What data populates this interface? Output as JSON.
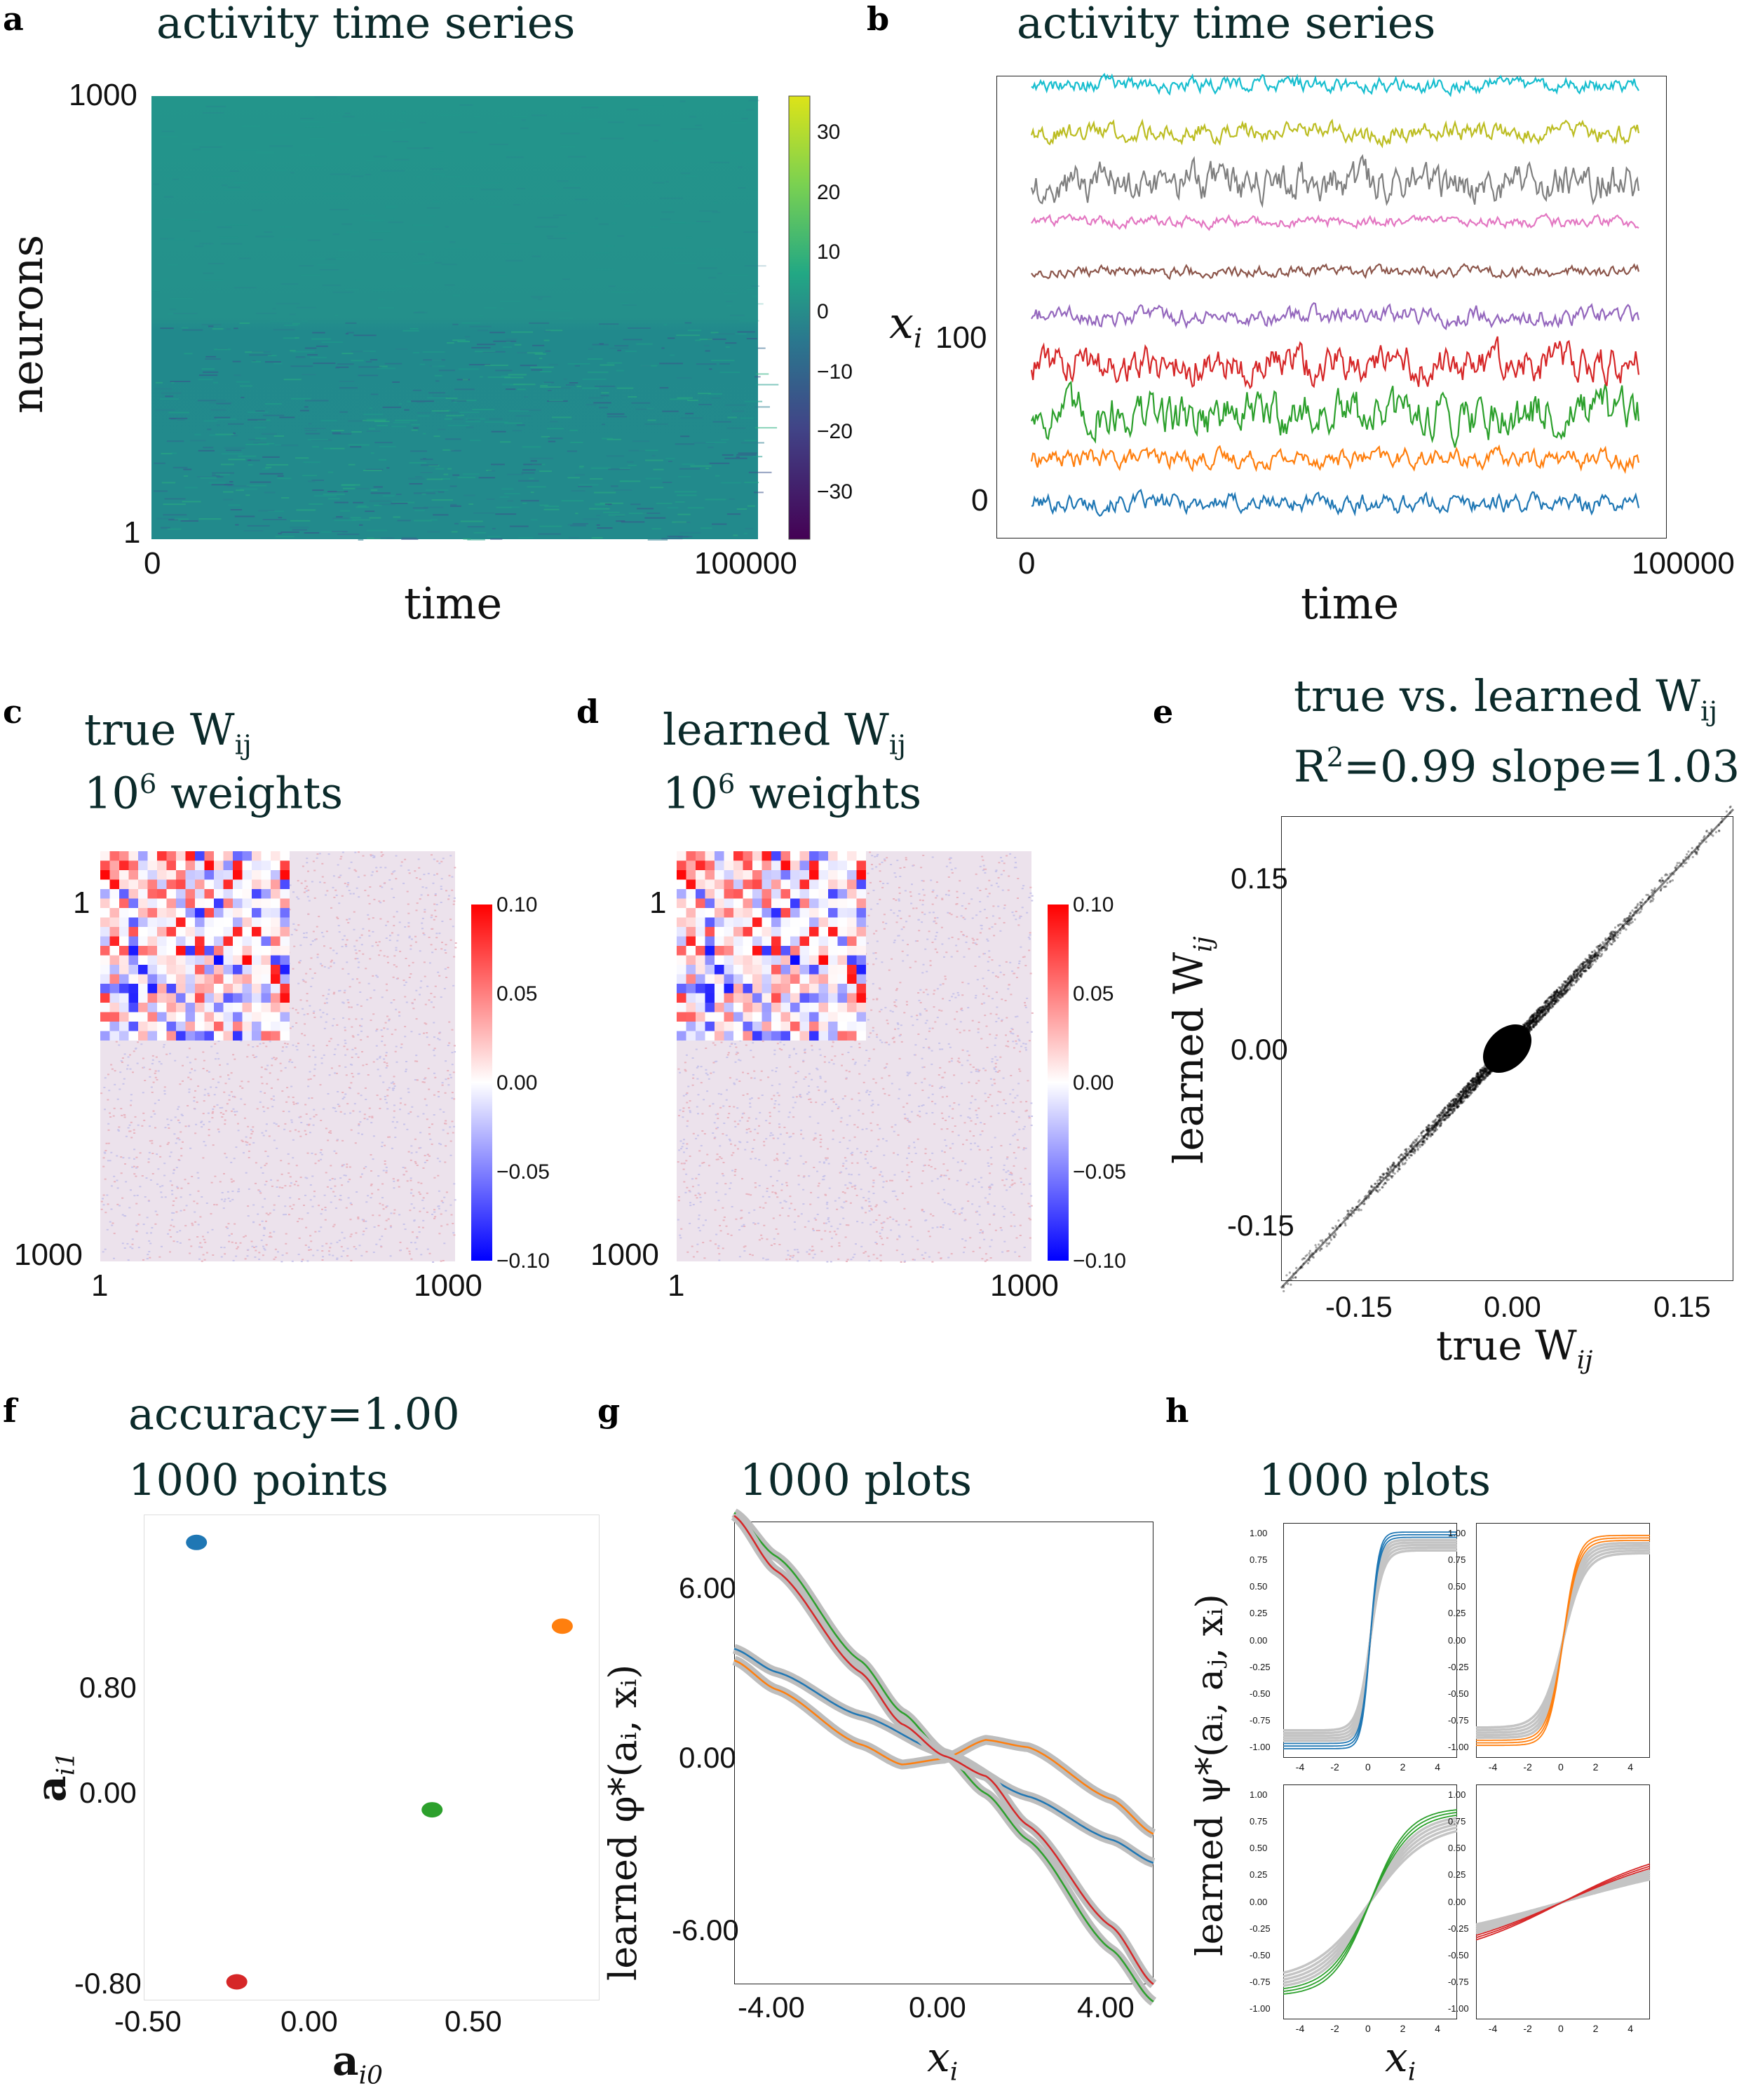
{
  "panels": {
    "a": {
      "label": "a",
      "title": "activity time series",
      "ylabel": "neurons",
      "xlabel": "time",
      "yticks": [
        "1000",
        "1"
      ],
      "xticks": [
        "0",
        "100000"
      ],
      "colorbar_ticks": [
        "30",
        "20",
        "10",
        "0",
        "−10",
        "−20",
        "−30"
      ]
    },
    "b": {
      "label": "b",
      "title": "activity time series",
      "ylabel": "x",
      "ylabel_sub": "i",
      "xlabel": "time",
      "yticks": [
        "100",
        "0"
      ],
      "xticks": [
        "0",
        "100000"
      ]
    },
    "c": {
      "label": "c",
      "title_line1": "true W",
      "title_sub": "ij",
      "title_line2_pre": "10",
      "title_line2_sup": "6",
      "title_line2_post": " weights",
      "yticks": [
        "1",
        "1000"
      ],
      "xticks": [
        "1",
        "1000"
      ],
      "colorbar_ticks": [
        "0.10",
        "0.05",
        "0.00",
        "−0.05",
        "−0.10"
      ]
    },
    "d": {
      "label": "d",
      "title_line1": "learned W",
      "title_sub": "ij",
      "title_line2_pre": "10",
      "title_line2_sup": "6",
      "title_line2_post": " weights",
      "yticks": [
        "1",
        "1000"
      ],
      "xticks": [
        "1",
        "1000"
      ],
      "colorbar_ticks": [
        "0.10",
        "0.05",
        "0.00",
        "−0.05",
        "−0.10"
      ]
    },
    "e": {
      "label": "e",
      "title_line1": "true vs. learned W",
      "title_sub": "ij",
      "title_line2_pre": "R",
      "title_line2_sup": "2",
      "title_line2_post": "=0.99  slope=1.03",
      "ylabel": "learned W",
      "ylabel_sub": "ij",
      "xlabel": "true W",
      "xlabel_sub": "ij",
      "yticks": [
        "0.15",
        "0.00",
        "-0.15"
      ],
      "xticks": [
        "-0.15",
        "0.00",
        "0.15"
      ]
    },
    "f": {
      "label": "f",
      "title_line1": "accuracy=1.00",
      "title_line2": "1000 points",
      "ylabel": "a",
      "ylabel_sub": "i1",
      "xlabel": "a",
      "xlabel_sub": "i0",
      "yticks": [
        "0.80",
        "0.00",
        "-0.80"
      ],
      "xticks": [
        "-0.50",
        "0.00",
        "0.50"
      ]
    },
    "g": {
      "label": "g",
      "title": "1000 plots",
      "ylabel": "learned φ*(aᵢ, xᵢ)",
      "xlabel": "x",
      "xlabel_sub": "i",
      "yticks": [
        "6.00",
        "0.00",
        "-6.00"
      ],
      "xticks": [
        "-4.00",
        "0.00",
        "4.00"
      ]
    },
    "h": {
      "label": "h",
      "title": "1000 plots",
      "ylabel": "learned ψ*(aᵢ, aⱼ, xᵢ)",
      "xlabel": "x",
      "xlabel_sub": "i",
      "yticks": [
        "1.00",
        "0.75",
        "0.50",
        "0.25",
        "0.00",
        "-0.25",
        "-0.50",
        "-0.75",
        "-1.00"
      ],
      "xticks": [
        "-4",
        "-2",
        "0",
        "2",
        "4"
      ]
    }
  },
  "chart_data": [
    {
      "type": "heatmap",
      "panel": "a",
      "title": "activity time series",
      "xlabel": "time",
      "ylabel": "neurons",
      "xlim": [
        0,
        100000
      ],
      "ylim": [
        1,
        1000
      ],
      "colorbar_range": [
        -38,
        36
      ],
      "colormap": "viridis"
    },
    {
      "type": "line",
      "panel": "b",
      "title": "activity time series",
      "xlabel": "time",
      "ylabel": "x_i",
      "xlim": [
        0,
        100000
      ],
      "ylim": [
        -20,
        240
      ],
      "series": [
        {
          "name": "trace-0",
          "color": "#1f77b4",
          "offset": 0,
          "amplitude": 5
        },
        {
          "name": "trace-1",
          "color": "#ff7f0e",
          "offset": 25,
          "amplitude": 5
        },
        {
          "name": "trace-2",
          "color": "#2ca02c",
          "offset": 50,
          "amplitude": 12
        },
        {
          "name": "trace-3",
          "color": "#d62728",
          "offset": 78,
          "amplitude": 10
        },
        {
          "name": "trace-4",
          "color": "#9467bd",
          "offset": 105,
          "amplitude": 5
        },
        {
          "name": "trace-5",
          "color": "#8c564b",
          "offset": 130,
          "amplitude": 3
        },
        {
          "name": "trace-6",
          "color": "#e377c2",
          "offset": 158,
          "amplitude": 3
        },
        {
          "name": "trace-7",
          "color": "#7f7f7f",
          "offset": 180,
          "amplitude": 10
        },
        {
          "name": "trace-8",
          "color": "#bcbd22",
          "offset": 208,
          "amplitude": 5
        },
        {
          "name": "trace-9",
          "color": "#17becf",
          "offset": 235,
          "amplitude": 4
        }
      ]
    },
    {
      "type": "heatmap",
      "panel": "c",
      "title": "true Wij",
      "xlim": [
        1,
        1000
      ],
      "ylim": [
        1,
        1000
      ],
      "colorbar_range": [
        -0.1,
        0.1
      ],
      "colormap": "bwr"
    },
    {
      "type": "heatmap",
      "panel": "d",
      "title": "learned Wij",
      "xlim": [
        1,
        1000
      ],
      "ylim": [
        1,
        1000
      ],
      "colorbar_range": [
        -0.1,
        0.1
      ],
      "colormap": "bwr"
    },
    {
      "type": "scatter",
      "panel": "e",
      "title": "true vs. learned Wij",
      "xlabel": "true Wij",
      "ylabel": "learned Wij",
      "xlim": [
        -0.2,
        0.2
      ],
      "ylim": [
        -0.2,
        0.2
      ],
      "r2": 0.99,
      "slope": 1.03
    },
    {
      "type": "scatter",
      "panel": "f",
      "title": "accuracy=1.00",
      "xlabel": "a_i0",
      "ylabel": "a_i1",
      "xlim": [
        -0.6,
        0.87
      ],
      "ylim": [
        -0.82,
        1.27
      ],
      "clusters": [
        {
          "name": "cluster-blue",
          "color": "#1f77b4",
          "x": -0.43,
          "y": 1.15
        },
        {
          "name": "cluster-orange",
          "color": "#ff7f0e",
          "x": 0.75,
          "y": 0.79
        },
        {
          "name": "cluster-green",
          "color": "#2ca02c",
          "x": 0.33,
          "y": 0.0
        },
        {
          "name": "cluster-red",
          "color": "#d62728",
          "x": -0.3,
          "y": -0.74
        }
      ]
    },
    {
      "type": "line",
      "panel": "g",
      "title": "1000 plots",
      "xlabel": "x_i",
      "ylabel": "learned phi*(a_i, x_i)",
      "xlim": [
        -5,
        5
      ],
      "ylim": [
        -8,
        8
      ],
      "series": [
        {
          "name": "blue",
          "color": "#1f77b4",
          "x": [
            -5,
            -4,
            -2,
            0,
            2,
            4,
            5
          ],
          "y": [
            3.6,
            2.8,
            1.3,
            0.0,
            -1.5,
            -3.0,
            -3.8
          ]
        },
        {
          "name": "orange",
          "color": "#ff7f0e",
          "x": [
            -5,
            -4,
            -2,
            -1,
            0,
            1,
            2,
            4,
            5
          ],
          "y": [
            3.2,
            2.2,
            0.3,
            -0.4,
            -0.2,
            0.45,
            0.2,
            -1.6,
            -2.8
          ]
        },
        {
          "name": "green",
          "color": "#2ca02c",
          "x": [
            -5,
            -4,
            -2,
            -1,
            0,
            1,
            2,
            4,
            5
          ],
          "y": [
            8.3,
            6.8,
            3.2,
            1.4,
            0.0,
            -1.4,
            -3.0,
            -6.8,
            -8.6
          ]
        },
        {
          "name": "red",
          "color": "#d62728",
          "x": [
            -5,
            -4,
            -2,
            -1,
            0,
            1,
            2,
            4,
            5
          ],
          "y": [
            8.2,
            6.3,
            2.8,
            1.0,
            -0.1,
            -0.8,
            -2.5,
            -6.0,
            -8.0
          ]
        }
      ]
    },
    {
      "type": "line",
      "panel": "h",
      "title": "1000 plots",
      "xlabel": "x_i",
      "ylabel": "learned psi*(a_i, a_j, x_i)",
      "xlim": [
        -5,
        5
      ],
      "ylim": [
        -1.1,
        1.1
      ],
      "subplots": [
        {
          "name": "blue",
          "color": "#1f77b4",
          "gain": 1.7,
          "amp": 0.98
        },
        {
          "name": "orange",
          "color": "#ff7f0e",
          "gain": 1.0,
          "amp": 0.95
        },
        {
          "name": "green",
          "color": "#2ca02c",
          "gain": 0.38,
          "amp": 0.85
        },
        {
          "name": "red",
          "color": "#d62728",
          "gain": 0.12,
          "amp": 0.55
        }
      ]
    }
  ]
}
